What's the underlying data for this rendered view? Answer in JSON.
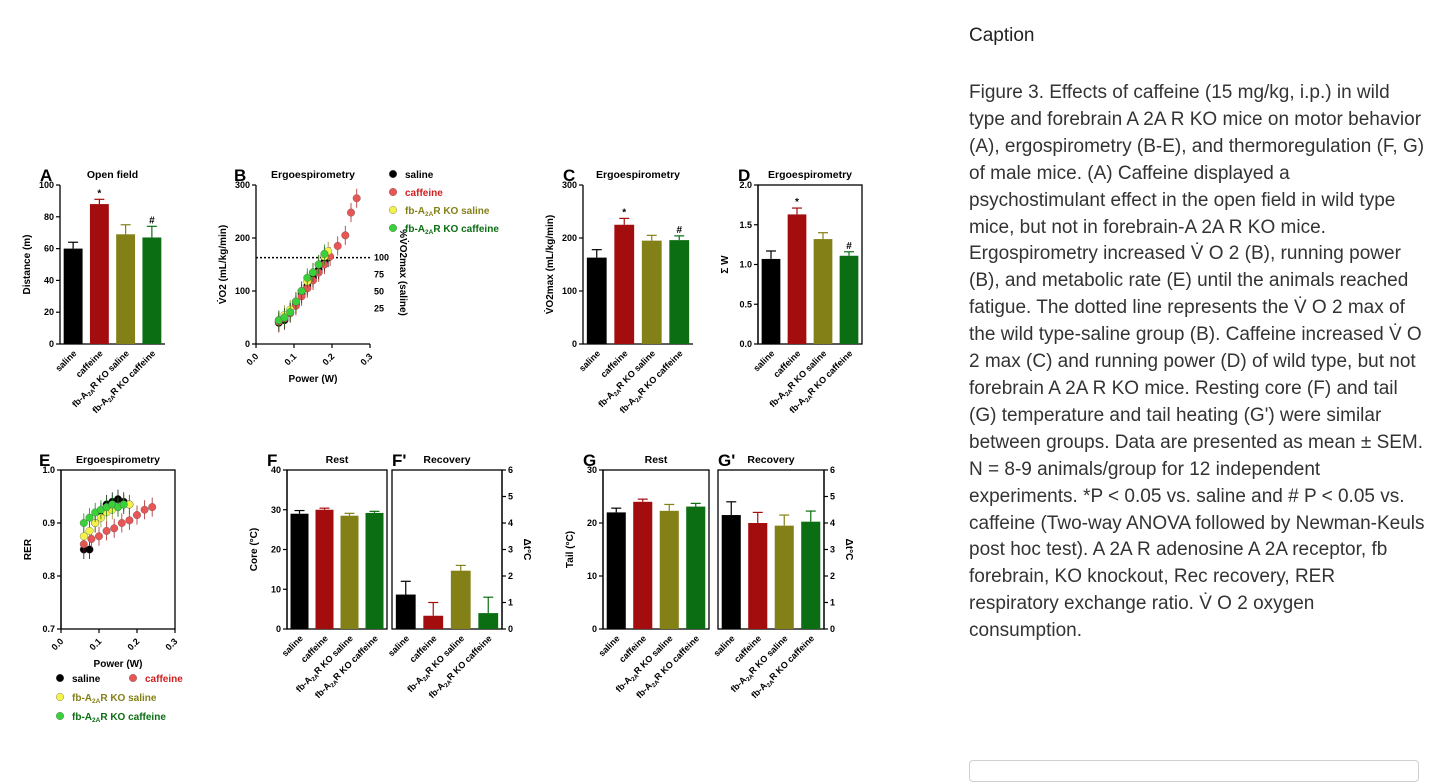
{
  "caption": {
    "heading": "Caption",
    "text": "Figure 3. Effects of caffeine (15 mg/kg, i.p.) in wild type and forebrain A 2A R KO mice on motor behavior (A), ergospirometry (B-E), and thermoregulation (F, G) of male mice. (A) Caffeine displayed a psychostimulant effect in the open field in wild type mice, but not in forebrain-A 2A R KO mice. Ergospirometry increased V̇ O 2 (B), running power (B), and metabolic rate (E) until the animals reached fatigue. The dotted line represents the V̇ O 2 max of the wild type-saline group (B). Caffeine increased V̇ O 2 max (C) and running power (D) of wild type, but not forebrain A 2A R KO mice. Resting core (F) and tail (G) temperature and tail heating (G') were similar between groups. Data are presented as mean ± SEM. N = 8-9 animals/group for 12 independent experiments. *P < 0.05 vs. saline and # P < 0.05 vs. caffeine (Two-way ANOVA followed by Newman-Keuls post hoc test). A 2A R adenosine A 2A receptor, fb forebrain, KO knockout, Rec recovery, RER respiratory exchange ratio. V̇ O 2 oxygen consumption."
  },
  "colors": {
    "saline": "#000000",
    "caffeine": "#a30d0d",
    "ko_saline": "#848018",
    "ko_caffeine": "#0b6e13",
    "caffeine_dot": "#e85555",
    "ko_saline_dot": "#f2f24a",
    "ko_caffeine_dot": "#3ad03a"
  },
  "groups": [
    "saline",
    "caffeine",
    "fb-A2AR KO saline",
    "fb-A2AR KO caffeine"
  ],
  "chart_data": [
    {
      "panel": "A",
      "type": "bar",
      "title": "Open field",
      "ylabel": "Distance (m)",
      "ylim": [
        0,
        100
      ],
      "yticks": [
        0,
        20,
        40,
        60,
        80,
        100
      ],
      "categories": [
        "saline",
        "caffeine",
        "fb-A2AR KO saline",
        "fb-A2AR KO caffeine"
      ],
      "values": [
        60,
        88,
        69,
        67
      ],
      "errors": [
        4,
        3,
        6,
        7
      ],
      "annotations": [
        "",
        "*",
        "",
        "#"
      ]
    },
    {
      "panel": "B",
      "type": "scatter",
      "title": "Ergoespirometry",
      "xlabel": "Power (W)",
      "ylabel": "V̇O2 (mL/kg/min)",
      "y2label": "%V̇O2max (saline)",
      "xlim": [
        0,
        0.3
      ],
      "xticks": [
        0.0,
        0.1,
        0.2,
        0.3
      ],
      "ylim": [
        0,
        300
      ],
      "yticks": [
        0,
        100,
        200,
        300
      ],
      "y2ticks": [
        25,
        50,
        75,
        100
      ],
      "reference_line": 163,
      "series": [
        {
          "name": "saline",
          "x": [
            0.06,
            0.075,
            0.09,
            0.105,
            0.12,
            0.135,
            0.15,
            0.165,
            0.18,
            0.19
          ],
          "y": [
            40,
            45,
            60,
            75,
            95,
            110,
            125,
            140,
            155,
            163
          ]
        },
        {
          "name": "caffeine",
          "x": [
            0.06,
            0.075,
            0.09,
            0.105,
            0.12,
            0.135,
            0.15,
            0.165,
            0.18,
            0.195,
            0.215,
            0.235,
            0.25,
            0.265
          ],
          "y": [
            42,
            48,
            58,
            72,
            90,
            105,
            120,
            135,
            150,
            165,
            185,
            205,
            248,
            275
          ]
        },
        {
          "name": "fb-A2AR KO saline",
          "x": [
            0.06,
            0.075,
            0.09,
            0.105,
            0.12,
            0.135,
            0.15,
            0.165,
            0.18,
            0.19
          ],
          "y": [
            45,
            55,
            65,
            80,
            100,
            118,
            135,
            150,
            165,
            175
          ]
        },
        {
          "name": "fb-A2AR KO caffeine",
          "x": [
            0.06,
            0.075,
            0.09,
            0.105,
            0.12,
            0.135,
            0.15,
            0.165,
            0.18
          ],
          "y": [
            45,
            50,
            60,
            80,
            100,
            125,
            135,
            150,
            170
          ]
        }
      ]
    },
    {
      "panel": "C",
      "type": "bar",
      "title": "Ergoespirometry",
      "ylabel": "V̇O2max (mL/kg/min)",
      "ylim": [
        0,
        300
      ],
      "yticks": [
        0,
        100,
        200,
        300
      ],
      "categories": [
        "saline",
        "caffeine",
        "fb-A2AR KO saline",
        "fb-A2AR KO caffeine"
      ],
      "values": [
        163,
        225,
        195,
        196
      ],
      "errors": [
        15,
        12,
        10,
        8
      ],
      "annotations": [
        "",
        "*",
        "",
        "#"
      ]
    },
    {
      "panel": "D",
      "type": "bar",
      "title": "Ergoespirometry",
      "ylabel": "Σ W",
      "ylim": [
        0,
        2.0
      ],
      "yticks": [
        0.0,
        0.5,
        1.0,
        1.5,
        2.0
      ],
      "categories": [
        "saline",
        "caffeine",
        "fb-A2AR KO saline",
        "fb-A2AR KO caffeine"
      ],
      "values": [
        1.07,
        1.63,
        1.32,
        1.11
      ],
      "errors": [
        0.1,
        0.08,
        0.08,
        0.05
      ],
      "annotations": [
        "",
        "*",
        "",
        "#"
      ]
    },
    {
      "panel": "E",
      "type": "scatter",
      "title": "Ergoespirometry",
      "xlabel": "Power (W)",
      "ylabel": "RER",
      "xlim": [
        0,
        0.3
      ],
      "xticks": [
        0.0,
        0.1,
        0.2,
        0.3
      ],
      "ylim": [
        0.7,
        1.0
      ],
      "yticks": [
        0.7,
        0.8,
        0.9,
        1.0
      ],
      "series": [
        {
          "name": "saline",
          "x": [
            0.06,
            0.075,
            0.09,
            0.105,
            0.12,
            0.135,
            0.15,
            0.165,
            0.18
          ],
          "y": [
            0.85,
            0.85,
            0.9,
            0.92,
            0.935,
            0.94,
            0.945,
            0.94,
            0.935
          ]
        },
        {
          "name": "caffeine",
          "x": [
            0.06,
            0.08,
            0.1,
            0.12,
            0.14,
            0.16,
            0.18,
            0.2,
            0.22,
            0.24
          ],
          "y": [
            0.86,
            0.87,
            0.875,
            0.885,
            0.89,
            0.9,
            0.905,
            0.915,
            0.925,
            0.93
          ]
        },
        {
          "name": "fb-A2AR KO saline",
          "x": [
            0.06,
            0.075,
            0.09,
            0.105,
            0.12,
            0.135,
            0.15,
            0.165,
            0.18
          ],
          "y": [
            0.875,
            0.885,
            0.9,
            0.91,
            0.92,
            0.925,
            0.93,
            0.935,
            0.935
          ]
        },
        {
          "name": "fb-A2AR KO caffeine",
          "x": [
            0.06,
            0.075,
            0.09,
            0.105,
            0.12,
            0.135,
            0.15,
            0.165
          ],
          "y": [
            0.9,
            0.91,
            0.92,
            0.925,
            0.93,
            0.935,
            0.93,
            0.935
          ]
        }
      ]
    },
    {
      "panel": "F",
      "type": "bar",
      "title": "Rest",
      "ylabel": "Core (°C)",
      "ylim": [
        0,
        40
      ],
      "yticks": [
        0,
        10,
        20,
        30,
        40
      ],
      "categories": [
        "saline",
        "caffeine",
        "fb-A2AR KO saline",
        "fb-A2AR KO caffeine"
      ],
      "values": [
        29,
        30,
        28.5,
        29.2
      ],
      "errors": [
        0.8,
        0.4,
        0.6,
        0.4
      ]
    },
    {
      "panel": "F'",
      "type": "bar",
      "title": "Recovery",
      "ylabel": "Δt°C",
      "ylim": [
        0,
        6
      ],
      "yticks": [
        0,
        1,
        2,
        3,
        4,
        5,
        6
      ],
      "categories": [
        "saline",
        "caffeine",
        "fb-A2AR KO saline",
        "fb-A2AR KO caffeine"
      ],
      "values": [
        1.3,
        0.5,
        2.2,
        0.6
      ],
      "errors": [
        0.5,
        0.5,
        0.2,
        0.6
      ]
    },
    {
      "panel": "G",
      "type": "bar",
      "title": "Rest",
      "ylabel": "Tail (°C)",
      "ylim": [
        0,
        30
      ],
      "yticks": [
        0,
        10,
        20,
        30
      ],
      "categories": [
        "saline",
        "caffeine",
        "fb-A2AR KO saline",
        "fb-A2AR KO caffeine"
      ],
      "values": [
        22,
        24,
        22.3,
        23.1
      ],
      "errors": [
        0.8,
        0.5,
        1.2,
        0.6
      ]
    },
    {
      "panel": "G'",
      "type": "bar",
      "title": "Recovery",
      "ylabel": "Δt°C",
      "ylim": [
        0,
        6
      ],
      "yticks": [
        0,
        1,
        2,
        3,
        4,
        5,
        6
      ],
      "categories": [
        "saline",
        "caffeine",
        "fb-A2AR KO saline",
        "fb-A2AR KO caffeine"
      ],
      "values": [
        4.3,
        4.0,
        3.9,
        4.05
      ],
      "errors": [
        0.5,
        0.4,
        0.4,
        0.4
      ]
    }
  ]
}
